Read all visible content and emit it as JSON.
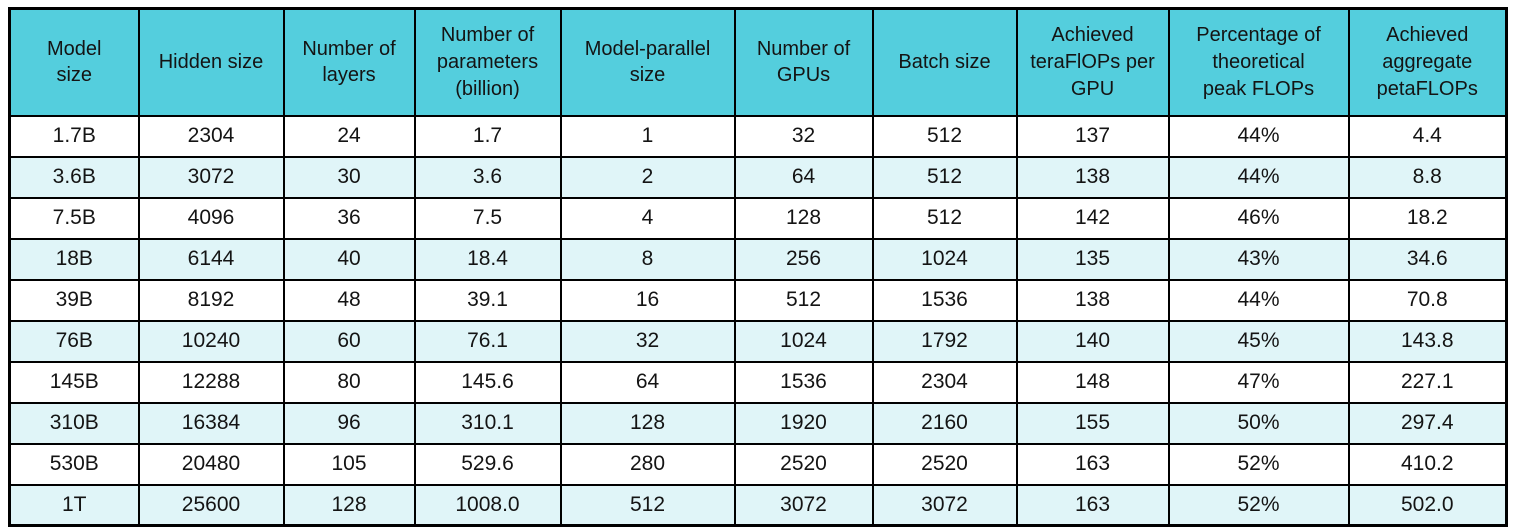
{
  "chart_data": {
    "type": "table",
    "columns": [
      "Model\nsize",
      "Hidden size",
      "Number of\nlayers",
      "Number of\nparameters\n(billion)",
      "Model-parallel\nsize",
      "Number of\nGPUs",
      "Batch size",
      "Achieved\nteraFlOPs per\nGPU",
      "Percentage of\ntheoretical\npeak FLOPs",
      "Achieved\naggregate\npetaFLOPs"
    ],
    "rows": [
      [
        "1.7B",
        "2304",
        "24",
        "1.7",
        "1",
        "32",
        "512",
        "137",
        "44%",
        "4.4"
      ],
      [
        "3.6B",
        "3072",
        "30",
        "3.6",
        "2",
        "64",
        "512",
        "138",
        "44%",
        "8.8"
      ],
      [
        "7.5B",
        "4096",
        "36",
        "7.5",
        "4",
        "128",
        "512",
        "142",
        "46%",
        "18.2"
      ],
      [
        "18B",
        "6144",
        "40",
        "18.4",
        "8",
        "256",
        "1024",
        "135",
        "43%",
        "34.6"
      ],
      [
        "39B",
        "8192",
        "48",
        "39.1",
        "16",
        "512",
        "1536",
        "138",
        "44%",
        "70.8"
      ],
      [
        "76B",
        "10240",
        "60",
        "76.1",
        "32",
        "1024",
        "1792",
        "140",
        "45%",
        "143.8"
      ],
      [
        "145B",
        "12288",
        "80",
        "145.6",
        "64",
        "1536",
        "2304",
        "148",
        "47%",
        "227.1"
      ],
      [
        "310B",
        "16384",
        "96",
        "310.1",
        "128",
        "1920",
        "2160",
        "155",
        "50%",
        "297.4"
      ],
      [
        "530B",
        "20480",
        "105",
        "529.6",
        "280",
        "2520",
        "2520",
        "163",
        "52%",
        "410.2"
      ],
      [
        "1T",
        "25600",
        "128",
        "1008.0",
        "512",
        "3072",
        "3072",
        "163",
        "52%",
        "502.0"
      ]
    ],
    "layout": {
      "grid": "on",
      "header_position": "top",
      "row_striping": "even rows tinted"
    }
  },
  "colors": {
    "header_bg": "#54cedd",
    "row_alt_bg": "#e0f5f8",
    "row_bg": "#ffffff",
    "border": "#000000",
    "text": "#141414"
  }
}
